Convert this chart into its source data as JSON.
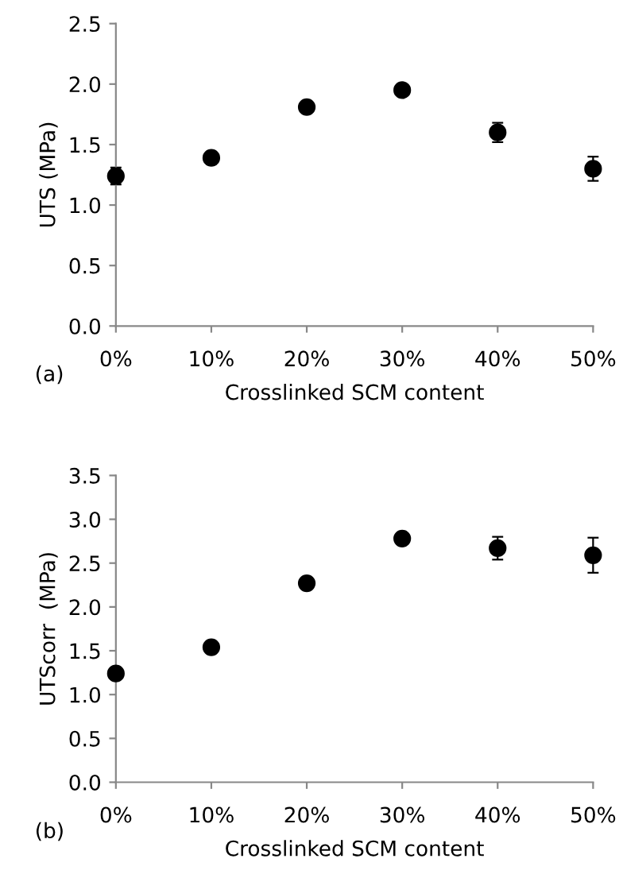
{
  "chart_data": [
    {
      "type": "scatter",
      "categories": [
        "0%",
        "10%",
        "20%",
        "30%",
        "40%",
        "50%"
      ],
      "values": [
        1.24,
        1.39,
        1.81,
        1.95,
        1.6,
        1.3
      ],
      "errors": [
        0.07,
        0.05,
        null,
        null,
        0.08,
        0.1
      ],
      "color": "#000000",
      "marker": "circle",
      "xlabel": "Crosslinked SCM content",
      "ylabel": "UTS (MPa)",
      "ylim": [
        0,
        2.5
      ],
      "yticks": [
        {
          "value": 0,
          "label": "0.0"
        },
        0.5,
        {
          "value": 1,
          "label": "1.0"
        },
        1.5,
        {
          "value": 2,
          "label": "2.0"
        },
        2.5
      ],
      "annotations": [
        "(a)"
      ],
      "grid": false
    },
    {
      "type": "scatter",
      "categories": [
        "0%",
        "10%",
        "20%",
        "30%",
        "40%",
        "50%"
      ],
      "values": [
        1.24,
        1.54,
        2.27,
        2.78,
        2.67,
        2.59
      ],
      "errors": [
        null,
        null,
        null,
        null,
        0.13,
        0.2
      ],
      "color": "#000000",
      "marker": "circle",
      "xlabel": "Crosslinked SCM content",
      "ylabel": "UTScorr  (MPa)",
      "ylim": [
        0,
        3.5
      ],
      "yticks": [
        {
          "value": 0,
          "label": "0.0"
        },
        0.5,
        {
          "value": 1,
          "label": "1.0"
        },
        1.5,
        {
          "value": 2,
          "label": "2.0"
        },
        2.5,
        {
          "value": 3,
          "label": "3.0"
        },
        3.5
      ],
      "annotations": [
        "(b)"
      ],
      "grid": false
    }
  ]
}
